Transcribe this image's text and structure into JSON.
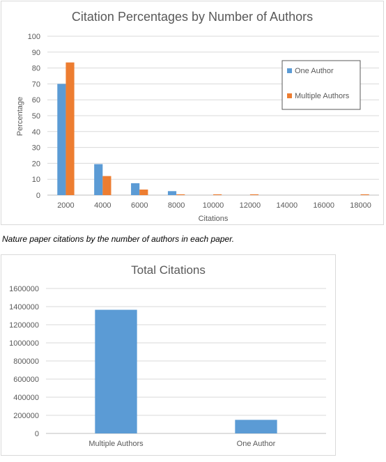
{
  "charts": [
    {
      "type": "bar",
      "title": "Citation Percentages by Number of Authors",
      "xlabel": "Citations",
      "ylabel": "Percentage",
      "ylim": [
        0,
        100
      ],
      "yticks": [
        0,
        10,
        20,
        30,
        40,
        50,
        60,
        70,
        80,
        90,
        100
      ],
      "grid": true,
      "legend": "right",
      "categories": [
        "2000",
        "4000",
        "6000",
        "8000",
        "10000",
        "12000",
        "14000",
        "16000",
        "18000"
      ],
      "series": [
        {
          "name": "One Author",
          "color": "#5b9bd5",
          "values": [
            70,
            19.5,
            7.5,
            2.5,
            0,
            0,
            0,
            0,
            0
          ]
        },
        {
          "name": "Multiple Authors",
          "color": "#ed7d31",
          "values": [
            83.5,
            12,
            3.5,
            0.5,
            0.5,
            0.5,
            0,
            0,
            0.5
          ]
        }
      ]
    },
    {
      "type": "bar",
      "title": "Total Citations",
      "ylim": [
        0,
        1600000
      ],
      "yticks": [
        0,
        200000,
        400000,
        600000,
        800000,
        1000000,
        1200000,
        1400000,
        1600000
      ],
      "grid": true,
      "categories": [
        "Multiple Authors",
        "One Author"
      ],
      "series": [
        {
          "color": "#5b9bd5",
          "values": [
            1365000,
            150000
          ]
        }
      ]
    }
  ],
  "caption": "Nature paper citations by the number of authors in each paper."
}
